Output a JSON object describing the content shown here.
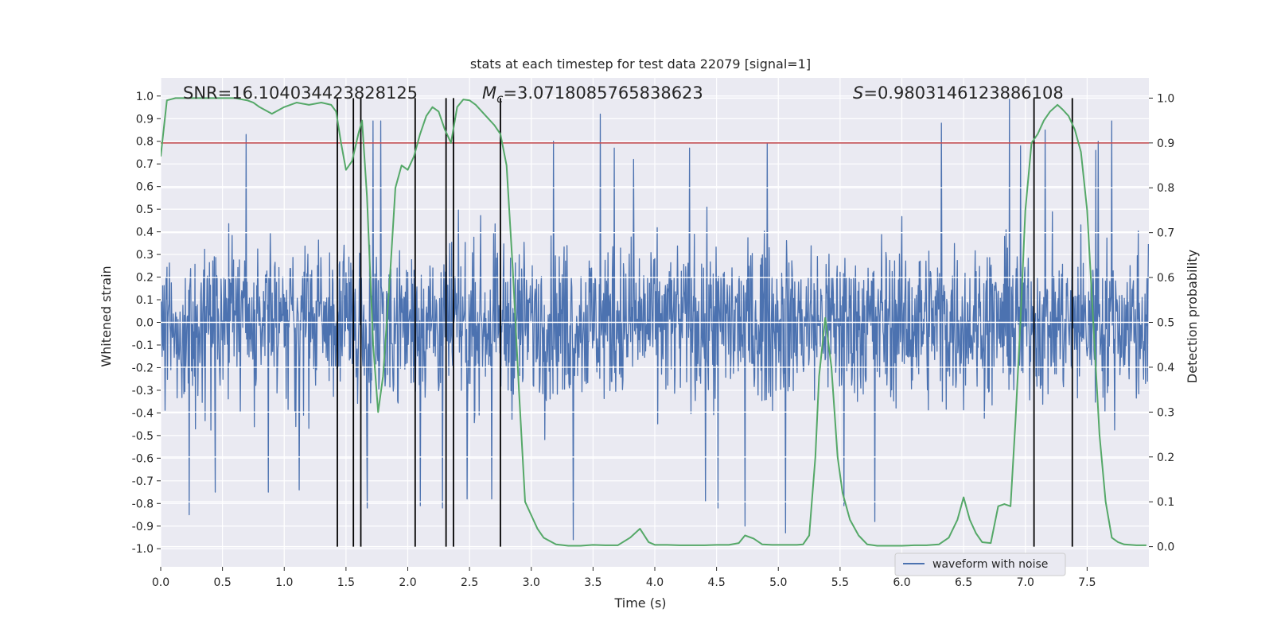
{
  "chart_data": {
    "type": "line",
    "title": "stats at each timestep for test data 22079 [signal=1]",
    "xlabel": "Time (s)",
    "ylabel": "Whitened strain",
    "y2label": "Detection probability",
    "xlim": [
      0,
      8.0
    ],
    "ylim": [
      -1.08,
      1.08
    ],
    "y2lim": [
      -0.045,
      1.045
    ],
    "xticks": [
      0.0,
      0.5,
      1.0,
      1.5,
      2.0,
      2.5,
      3.0,
      3.5,
      4.0,
      4.5,
      5.0,
      5.5,
      6.0,
      6.5,
      7.0,
      7.5
    ],
    "yticks": [
      -1.0,
      -0.9,
      -0.8,
      -0.7,
      -0.6,
      -0.5,
      -0.4,
      -0.3,
      -0.2,
      -0.1,
      0.0,
      0.1,
      0.2,
      0.3,
      0.4,
      0.5,
      0.6,
      0.7,
      0.8,
      0.9,
      1.0
    ],
    "y2ticks": [
      0.0,
      0.1,
      0.2,
      0.3,
      0.4,
      0.5,
      0.6,
      0.7,
      0.8,
      0.9,
      1.0
    ],
    "grid": true,
    "legend": {
      "position": "lower-right",
      "entries": [
        "waveform with noise"
      ]
    },
    "annotations": {
      "snr": "SNR=16.104034423828125",
      "mc_symbol": "M",
      "mc_sub": "c",
      "mc_value": "=3.0718085765838623",
      "s_symbol": "S",
      "s_value": "=0.9803146123886108"
    },
    "threshold": {
      "value": 0.9,
      "axis": "y2",
      "color": "#c44e52"
    },
    "event_lines_x": [
      1.43,
      1.56,
      1.62,
      2.06,
      2.31,
      2.37,
      2.75,
      7.07,
      7.38
    ],
    "waveform": {
      "name": "waveform with noise",
      "color": "#4c72b0",
      "t_start": 0.0,
      "t_end": 8.0,
      "sample_rate_hz": 256,
      "description_envelope": "noise amplitude approx ±0.4 typical with spikes to ±0.95",
      "spikes": [
        [
          0.23,
          -0.85
        ],
        [
          0.44,
          -0.75
        ],
        [
          0.69,
          0.83
        ],
        [
          0.87,
          -0.75
        ],
        [
          1.12,
          -0.74
        ],
        [
          1.67,
          -0.82
        ],
        [
          1.72,
          0.89
        ],
        [
          1.78,
          0.89
        ],
        [
          2.1,
          -0.81
        ],
        [
          2.28,
          -0.82
        ],
        [
          2.48,
          -0.78
        ],
        [
          2.68,
          -0.78
        ],
        [
          3.18,
          0.8
        ],
        [
          3.34,
          -0.96
        ],
        [
          3.56,
          0.92
        ],
        [
          3.67,
          0.77
        ],
        [
          3.83,
          0.72
        ],
        [
          4.28,
          0.77
        ],
        [
          4.41,
          -0.79
        ],
        [
          4.51,
          -0.82
        ],
        [
          4.73,
          -0.9
        ],
        [
          4.91,
          0.79
        ],
        [
          5.06,
          -0.93
        ],
        [
          5.53,
          -0.81
        ],
        [
          5.78,
          -0.88
        ],
        [
          6.32,
          0.88
        ],
        [
          6.96,
          0.78
        ],
        [
          7.16,
          0.85
        ],
        [
          7.57,
          0.76
        ],
        [
          7.7,
          0.89
        ],
        [
          6.87,
          0.99
        ],
        [
          7.59,
          0.8
        ]
      ]
    },
    "probability": {
      "color": "#55a868",
      "axis": "y2",
      "x": [
        0.0,
        0.05,
        0.12,
        0.2,
        0.3,
        0.4,
        0.5,
        0.6,
        0.7,
        0.75,
        0.8,
        0.9,
        1.0,
        1.1,
        1.2,
        1.3,
        1.38,
        1.42,
        1.46,
        1.5,
        1.55,
        1.6,
        1.63,
        1.67,
        1.72,
        1.76,
        1.8,
        1.86,
        1.9,
        1.95,
        2.0,
        2.05,
        2.1,
        2.15,
        2.2,
        2.25,
        2.3,
        2.35,
        2.4,
        2.45,
        2.5,
        2.55,
        2.6,
        2.65,
        2.7,
        2.75,
        2.8,
        2.85,
        2.9,
        2.95,
        3.0,
        3.05,
        3.1,
        3.2,
        3.3,
        3.4,
        3.5,
        3.6,
        3.7,
        3.8,
        3.88,
        3.95,
        4.0,
        4.1,
        4.2,
        4.3,
        4.4,
        4.5,
        4.6,
        4.68,
        4.73,
        4.8,
        4.87,
        4.95,
        5.05,
        5.15,
        5.2,
        5.25,
        5.3,
        5.33,
        5.38,
        5.43,
        5.48,
        5.52,
        5.58,
        5.65,
        5.72,
        5.8,
        5.9,
        6.0,
        6.1,
        6.2,
        6.3,
        6.38,
        6.45,
        6.5,
        6.55,
        6.6,
        6.65,
        6.72,
        6.78,
        6.83,
        6.88,
        6.92,
        6.96,
        7.0,
        7.05,
        7.1,
        7.15,
        7.2,
        7.26,
        7.3,
        7.35,
        7.4,
        7.45,
        7.5,
        7.55,
        7.6,
        7.65,
        7.7,
        7.75,
        7.8,
        7.9,
        7.98
      ],
      "y": [
        0.87,
        0.995,
        1.0,
        1.0,
        1.0,
        1.0,
        1.0,
        1.0,
        0.995,
        0.99,
        0.98,
        0.965,
        0.98,
        0.99,
        0.985,
        0.99,
        0.985,
        0.97,
        0.9,
        0.84,
        0.86,
        0.92,
        0.95,
        0.78,
        0.45,
        0.3,
        0.38,
        0.62,
        0.8,
        0.85,
        0.84,
        0.87,
        0.92,
        0.96,
        0.98,
        0.97,
        0.93,
        0.9,
        0.98,
        0.997,
        0.995,
        0.985,
        0.97,
        0.955,
        0.94,
        0.92,
        0.85,
        0.62,
        0.35,
        0.1,
        0.07,
        0.04,
        0.02,
        0.005,
        0.002,
        0.002,
        0.004,
        0.003,
        0.003,
        0.02,
        0.04,
        0.01,
        0.004,
        0.004,
        0.003,
        0.003,
        0.003,
        0.004,
        0.004,
        0.008,
        0.025,
        0.018,
        0.005,
        0.004,
        0.004,
        0.004,
        0.005,
        0.025,
        0.2,
        0.38,
        0.51,
        0.4,
        0.2,
        0.12,
        0.06,
        0.025,
        0.005,
        0.002,
        0.002,
        0.002,
        0.003,
        0.003,
        0.005,
        0.02,
        0.06,
        0.11,
        0.06,
        0.03,
        0.01,
        0.008,
        0.09,
        0.095,
        0.09,
        0.28,
        0.5,
        0.75,
        0.9,
        0.92,
        0.95,
        0.97,
        0.985,
        0.975,
        0.96,
        0.93,
        0.88,
        0.75,
        0.5,
        0.25,
        0.1,
        0.02,
        0.01,
        0.005,
        0.003,
        0.003
      ]
    }
  },
  "colors": {
    "background": "#ffffff",
    "axes_face": "#eaeaf2",
    "grid": "#ffffff",
    "event_line": "#000000"
  }
}
